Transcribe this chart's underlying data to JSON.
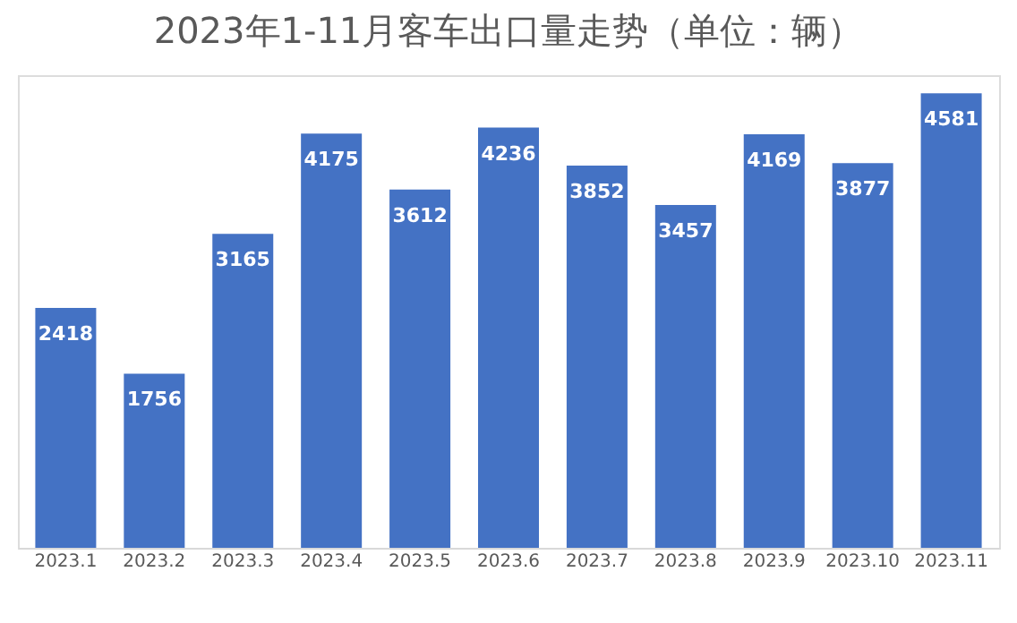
{
  "chart_data": {
    "type": "bar",
    "title": "2023年1-11月客车出口量走势（单位：辆）",
    "categories": [
      "2023.1",
      "2023.2",
      "2023.3",
      "2023.4",
      "2023.5",
      "2023.6",
      "2023.7",
      "2023.8",
      "2023.9",
      "2023.10",
      "2023.11"
    ],
    "values": [
      2418,
      1756,
      3165,
      4175,
      3612,
      4236,
      3852,
      3457,
      4169,
      3877,
      4581
    ],
    "color": "#4472c4",
    "data_labels": true
  }
}
